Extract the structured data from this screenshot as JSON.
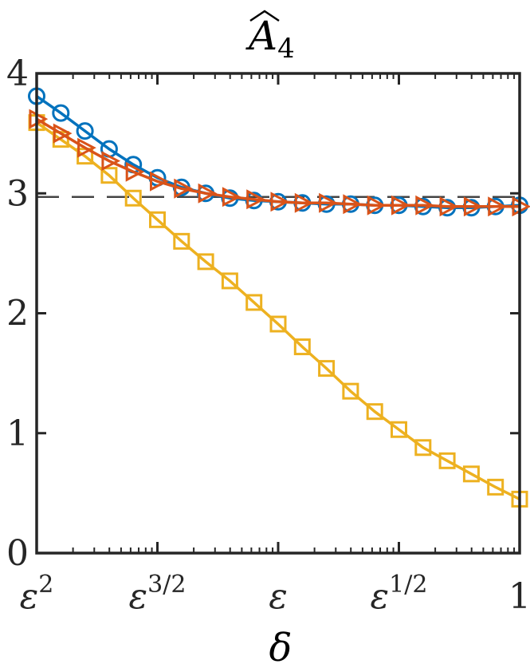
{
  "chart_data": {
    "type": "line",
    "title": "A",
    "title_subscript": "4",
    "title_hat": true,
    "xlabel": "δ",
    "ylabel": "",
    "xscale": "log",
    "x_tick_labels": [
      {
        "base": "ε",
        "sup": "2"
      },
      {
        "base": "ε",
        "sup": "3/2"
      },
      {
        "base": "ε",
        "sup": ""
      },
      {
        "base": "ε",
        "sup": "1/2"
      },
      {
        "base": "1",
        "sup": ""
      }
    ],
    "x_tick_exponents": [
      2,
      1.5,
      1,
      0.5,
      0
    ],
    "y_ticks": [
      0,
      1,
      2,
      3,
      4
    ],
    "ylim": [
      0,
      4
    ],
    "grid": false,
    "legend": "none",
    "reference_line": {
      "y": 2.97,
      "style": "dashed",
      "color": "#000000"
    },
    "series": [
      {
        "marker": "circle",
        "color": "#0072BD",
        "x": [
          2.0,
          1.9,
          1.8,
          1.7,
          1.6,
          1.5,
          1.4,
          1.3,
          1.2,
          1.1,
          1.0,
          0.9,
          0.8,
          0.7,
          0.6,
          0.5,
          0.4,
          0.3,
          0.2,
          0.1,
          0.0
        ],
        "y": [
          3.81,
          3.67,
          3.52,
          3.37,
          3.24,
          3.13,
          3.05,
          3.0,
          2.96,
          2.94,
          2.93,
          2.92,
          2.91,
          2.91,
          2.9,
          2.9,
          2.89,
          2.88,
          2.88,
          2.89,
          2.9
        ]
      },
      {
        "marker": "triangle-right",
        "color": "#D95319",
        "x": [
          2.0,
          1.9,
          1.8,
          1.7,
          1.6,
          1.5,
          1.4,
          1.3,
          1.2,
          1.1,
          1.0,
          0.9,
          0.8,
          0.7,
          0.6,
          0.5,
          0.4,
          0.3,
          0.2,
          0.1,
          0.0
        ],
        "y": [
          3.62,
          3.5,
          3.38,
          3.27,
          3.18,
          3.1,
          3.04,
          3.0,
          2.97,
          2.95,
          2.93,
          2.92,
          2.92,
          2.91,
          2.9,
          2.9,
          2.9,
          2.89,
          2.89,
          2.89,
          2.89
        ]
      },
      {
        "marker": "square",
        "color": "#EDB120",
        "x": [
          2.0,
          1.9,
          1.8,
          1.7,
          1.6,
          1.5,
          1.4,
          1.3,
          1.2,
          1.1,
          1.0,
          0.9,
          0.8,
          0.7,
          0.6,
          0.5,
          0.4,
          0.3,
          0.2,
          0.1,
          0.0
        ],
        "y": [
          3.59,
          3.45,
          3.31,
          3.15,
          2.96,
          2.78,
          2.6,
          2.43,
          2.27,
          2.09,
          1.91,
          1.72,
          1.54,
          1.35,
          1.18,
          1.03,
          0.88,
          0.77,
          0.66,
          0.55,
          0.45
        ]
      }
    ]
  }
}
